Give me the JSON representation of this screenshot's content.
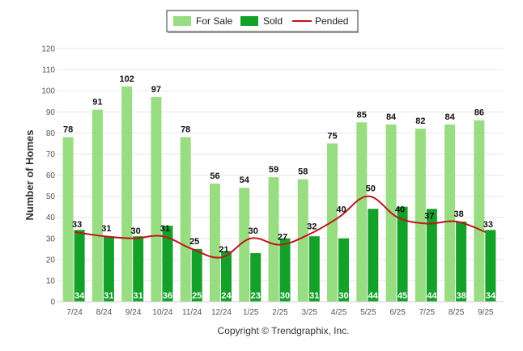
{
  "chart_data": {
    "type": "bar",
    "title": "",
    "xlabel": "",
    "ylabel": "Number of Homes",
    "ylim": [
      0,
      120
    ],
    "yticks": [
      0,
      10,
      20,
      30,
      40,
      50,
      60,
      70,
      80,
      90,
      100,
      110,
      120
    ],
    "grid": true,
    "legend_position": "top-center",
    "categories": [
      "7/24",
      "8/24",
      "9/24",
      "10/24",
      "11/24",
      "12/24",
      "1/25",
      "2/25",
      "3/25",
      "4/25",
      "5/25",
      "6/25",
      "7/25",
      "8/25",
      "9/25"
    ],
    "series": [
      {
        "name": "For Sale",
        "type": "bar",
        "color": "#99dd82",
        "values": [
          78,
          91,
          102,
          97,
          78,
          56,
          54,
          59,
          58,
          75,
          85,
          84,
          82,
          84,
          86
        ]
      },
      {
        "name": "Sold",
        "type": "bar",
        "color": "#14a12a",
        "values": [
          34,
          31,
          31,
          36,
          25,
          24,
          23,
          30,
          31,
          30,
          44,
          45,
          44,
          38,
          34
        ]
      },
      {
        "name": "Pended",
        "type": "line",
        "color": "#c0141c",
        "values": [
          33,
          31,
          30,
          31,
          25,
          21,
          30,
          27,
          32,
          40,
          50,
          40,
          37,
          38,
          33
        ]
      }
    ]
  },
  "footer": {
    "copyright": "Copyright © Trendgraphix, Inc."
  }
}
